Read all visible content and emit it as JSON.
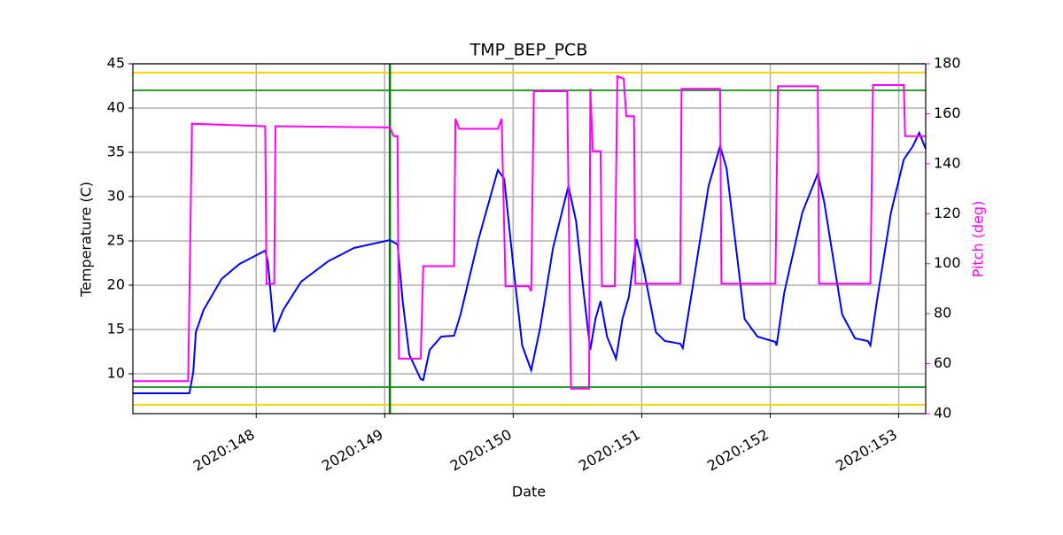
{
  "chart_data": {
    "type": "line",
    "title": "TMP_BEP_PCB",
    "x_label": "Date",
    "y_label": "Temperature (C)",
    "y2_label": "Pitch (deg)",
    "xlim": [
      147.04,
      153.21
    ],
    "ylim": [
      5.5,
      45
    ],
    "y2lim": [
      40,
      180
    ],
    "xticks": [
      {
        "value": 148,
        "label": "2020:148"
      },
      {
        "value": 149,
        "label": "2020:149"
      },
      {
        "value": 150,
        "label": "2020:150"
      },
      {
        "value": 151,
        "label": "2020:151"
      },
      {
        "value": 152,
        "label": "2020:152"
      },
      {
        "value": 153,
        "label": "2020:153"
      }
    ],
    "yticks": [
      10,
      15,
      20,
      25,
      30,
      35,
      40,
      45
    ],
    "y2ticks": [
      40,
      60,
      80,
      100,
      120,
      140,
      160,
      180
    ],
    "grid": true,
    "y2_color": "#ff00ff",
    "hlines": [
      {
        "value": 44,
        "color": "#ffd700"
      },
      {
        "value": 6.5,
        "color": "#ffd700"
      },
      {
        "value": 42,
        "color": "#2ca02c"
      },
      {
        "value": 8.5,
        "color": "#2ca02c"
      }
    ],
    "vlines": [
      {
        "value": 149.04,
        "color": "#008000"
      }
    ],
    "series": [
      {
        "color": "#0000ff",
        "axis": "y",
        "x": [
          147.04,
          147.48,
          147.51,
          147.53,
          147.59,
          147.73,
          147.87,
          148.07,
          148.09,
          148.14,
          148.21,
          148.35,
          148.56,
          148.76,
          149.04,
          149.1,
          149.14,
          149.19,
          149.28,
          149.3,
          149.35,
          149.44,
          149.54,
          149.59,
          149.73,
          149.88,
          149.93,
          150.0,
          150.07,
          150.14,
          150.21,
          150.31,
          150.43,
          150.49,
          150.54,
          150.6,
          150.64,
          150.68,
          150.73,
          150.8,
          150.85,
          150.9,
          150.96,
          151.01,
          151.11,
          151.18,
          151.3,
          151.32,
          151.39,
          151.52,
          151.61,
          151.66,
          151.8,
          151.9,
          152.04,
          152.05,
          152.11,
          152.25,
          152.37,
          152.42,
          152.56,
          152.66,
          152.76,
          152.78,
          152.83,
          152.94,
          153.04,
          153.11,
          153.16,
          153.21
        ],
        "values": [
          7.8,
          7.8,
          10.2,
          14.7,
          17.2,
          20.7,
          22.4,
          23.9,
          22.7,
          14.7,
          17.2,
          20.4,
          22.7,
          24.2,
          25.1,
          24.6,
          18.2,
          12.2,
          9.4,
          9.3,
          12.7,
          14.2,
          14.3,
          16.7,
          25.2,
          33.0,
          32.0,
          22.2,
          13.2,
          10.4,
          15.2,
          24.2,
          31.2,
          27.2,
          20.2,
          12.7,
          16.2,
          18.2,
          14.2,
          11.7,
          16.2,
          18.7,
          25.2,
          22.2,
          14.7,
          13.7,
          13.4,
          12.9,
          19.2,
          31.2,
          35.7,
          33.2,
          16.2,
          14.2,
          13.6,
          13.2,
          19.2,
          28.2,
          32.6,
          29.4,
          16.7,
          14.0,
          13.7,
          13.2,
          18.2,
          28.2,
          34.2,
          35.7,
          37.2,
          35.4
        ]
      },
      {
        "color": "#ff00ff",
        "axis": "y2",
        "x": [
          147.04,
          147.47,
          147.5,
          148.07,
          148.08,
          148.14,
          148.15,
          149.04,
          149.07,
          149.1,
          149.11,
          149.28,
          149.3,
          149.54,
          149.55,
          149.58,
          149.88,
          149.91,
          149.94,
          150.12,
          150.14,
          150.16,
          150.42,
          150.45,
          150.59,
          150.6,
          150.62,
          150.68,
          150.69,
          150.79,
          150.81,
          150.86,
          150.88,
          150.94,
          150.95,
          151.3,
          151.31,
          151.61,
          151.62,
          152.04,
          152.06,
          152.37,
          152.38,
          152.78,
          152.8,
          153.04,
          153.05,
          153.21
        ],
        "values": [
          53,
          53,
          156,
          155,
          92,
          92,
          155,
          154.5,
          151,
          151,
          62,
          62,
          99,
          99,
          158,
          154,
          154,
          158,
          91,
          91,
          89,
          169,
          169,
          50,
          50,
          170,
          145,
          145,
          91,
          91,
          175,
          174,
          159,
          159,
          92,
          92,
          170,
          170,
          92,
          92,
          171,
          171,
          92,
          92,
          171.5,
          171.5,
          151,
          151
        ]
      }
    ]
  }
}
